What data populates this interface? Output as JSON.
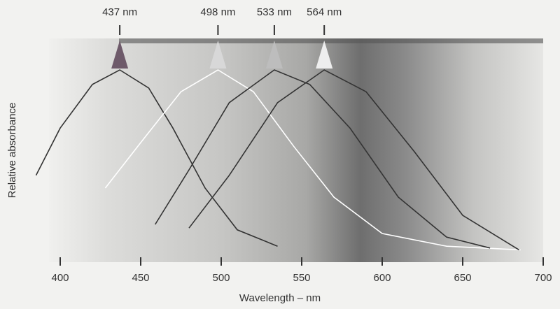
{
  "chart_data": {
    "type": "line",
    "x_label": "Wavelength – nm",
    "y_label": "Relative absorbance",
    "xlim": [
      380,
      700
    ],
    "ylim": [
      0,
      1
    ],
    "xticks": [
      400,
      450,
      500,
      550,
      600,
      650,
      700
    ],
    "peaks": [
      {
        "value": 437,
        "label": "437 nm",
        "color": "#6e5a6a"
      },
      {
        "value": 498,
        "label": "498 nm",
        "color": "#d8d8d8"
      },
      {
        "value": 533,
        "label": "533 nm",
        "color": "#bdbdbd"
      },
      {
        "value": 564,
        "label": "564 nm",
        "color": "#eeeeee"
      }
    ],
    "series": [
      {
        "color": "#333333",
        "x": [
          385,
          400,
          420,
          437,
          455,
          470,
          490,
          510,
          535
        ],
        "values": [
          0.42,
          0.68,
          0.92,
          1.0,
          0.9,
          0.68,
          0.35,
          0.12,
          0.03
        ]
      },
      {
        "color": "#ffffff",
        "x": [
          428,
          450,
          475,
          498,
          520,
          545,
          570,
          600,
          640,
          686
        ],
        "values": [
          0.35,
          0.6,
          0.88,
          1.0,
          0.88,
          0.58,
          0.3,
          0.1,
          0.03,
          0.01
        ]
      },
      {
        "color": "#333333",
        "x": [
          459,
          480,
          505,
          533,
          555,
          580,
          610,
          640,
          667
        ],
        "values": [
          0.15,
          0.45,
          0.82,
          1.0,
          0.92,
          0.68,
          0.3,
          0.08,
          0.02
        ]
      },
      {
        "color": "#333333",
        "x": [
          480,
          505,
          535,
          564,
          590,
          620,
          650,
          685
        ],
        "values": [
          0.13,
          0.42,
          0.82,
          1.0,
          0.88,
          0.55,
          0.2,
          0.01
        ]
      }
    ]
  }
}
